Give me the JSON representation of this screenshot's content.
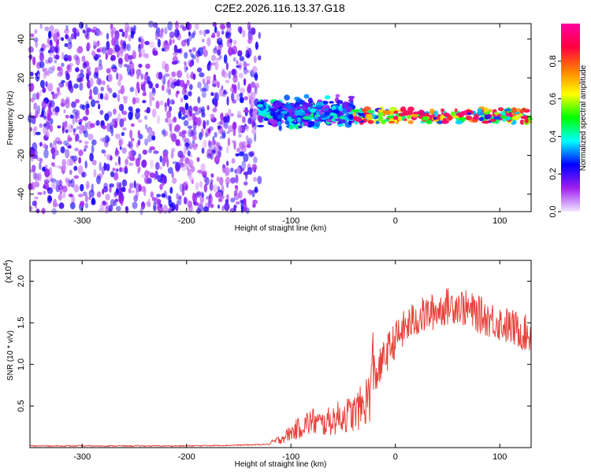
{
  "title": "C2E2.2026.116.13.37.G18",
  "chart_data": [
    {
      "type": "heatmap",
      "xlabel": "Height of straight line (km)",
      "ylabel": "Frequency (Hz)",
      "xlim": [
        -350,
        130
      ],
      "ylim": [
        -49,
        48
      ],
      "x_ticks": [
        -300,
        -200,
        -100,
        0,
        100
      ],
      "y_ticks": [
        -40,
        -20,
        0,
        20,
        40
      ],
      "colorbar": {
        "label": "Normalized spectral amplitude",
        "range": [
          0,
          1
        ],
        "ticks": [
          "0.0",
          "0.2",
          "0.4",
          "0.6",
          "0.8"
        ],
        "tick_values": [
          0,
          0.2,
          0.4,
          0.6,
          0.8
        ],
        "colormap": [
          "#f0e8ff",
          "#a020f0",
          "#0000ff",
          "#00ffff",
          "#00ff00",
          "#ffff00",
          "#ff8000",
          "#ff0040",
          "#ff00a0"
        ]
      },
      "regions": [
        {
          "x": [
            -350,
            -130
          ],
          "y": [
            -49,
            48
          ],
          "amplitude": [
            0.05,
            0.25
          ],
          "pattern": "scattered noise"
        },
        {
          "x": [
            -130,
            -40
          ],
          "y": [
            -8,
            12
          ],
          "amplitude": [
            0.1,
            0.45
          ],
          "pattern": "dense cluster"
        },
        {
          "x": [
            -40,
            130
          ],
          "y": [
            -3,
            4
          ],
          "amplitude": [
            0.2,
            0.95
          ],
          "pattern": "narrow band near 0 Hz"
        }
      ]
    },
    {
      "type": "line",
      "xlabel": "Height of straight line (km)",
      "ylabel": "SNR (10 * v/v)",
      "y_multiplier": "(x10",
      "y_multiplier_exp": "4",
      "y_multiplier_close": ")",
      "xlim": [
        -350,
        130
      ],
      "ylim": [
        0,
        2.25
      ],
      "x_ticks": [
        -300,
        -200,
        -100,
        0,
        100
      ],
      "y_ticks": [
        "0.5",
        "1.0",
        "1.5",
        "2.0"
      ],
      "y_tick_values": [
        0.5,
        1.0,
        1.5,
        2.0
      ],
      "color": "#e8403a",
      "series": [
        {
          "x": [
            -350,
            -300,
            -250,
            -200,
            -150,
            -120,
            -110,
            -100,
            -90,
            -80,
            -70,
            -60,
            -50,
            -40,
            -30,
            -25,
            -20,
            -15,
            -10,
            -5,
            0,
            10,
            20,
            30,
            40,
            50,
            60,
            70,
            80,
            90,
            100,
            110,
            120,
            130
          ],
          "y": [
            0.02,
            0.02,
            0.02,
            0.02,
            0.03,
            0.04,
            0.08,
            0.14,
            0.2,
            0.25,
            0.22,
            0.26,
            0.3,
            0.32,
            0.4,
            0.5,
            0.85,
            0.95,
            1.1,
            1.2,
            1.3,
            1.45,
            1.55,
            1.6,
            1.65,
            1.7,
            1.72,
            1.65,
            1.6,
            1.55,
            1.5,
            1.45,
            1.4,
            1.35
          ]
        }
      ]
    }
  ]
}
